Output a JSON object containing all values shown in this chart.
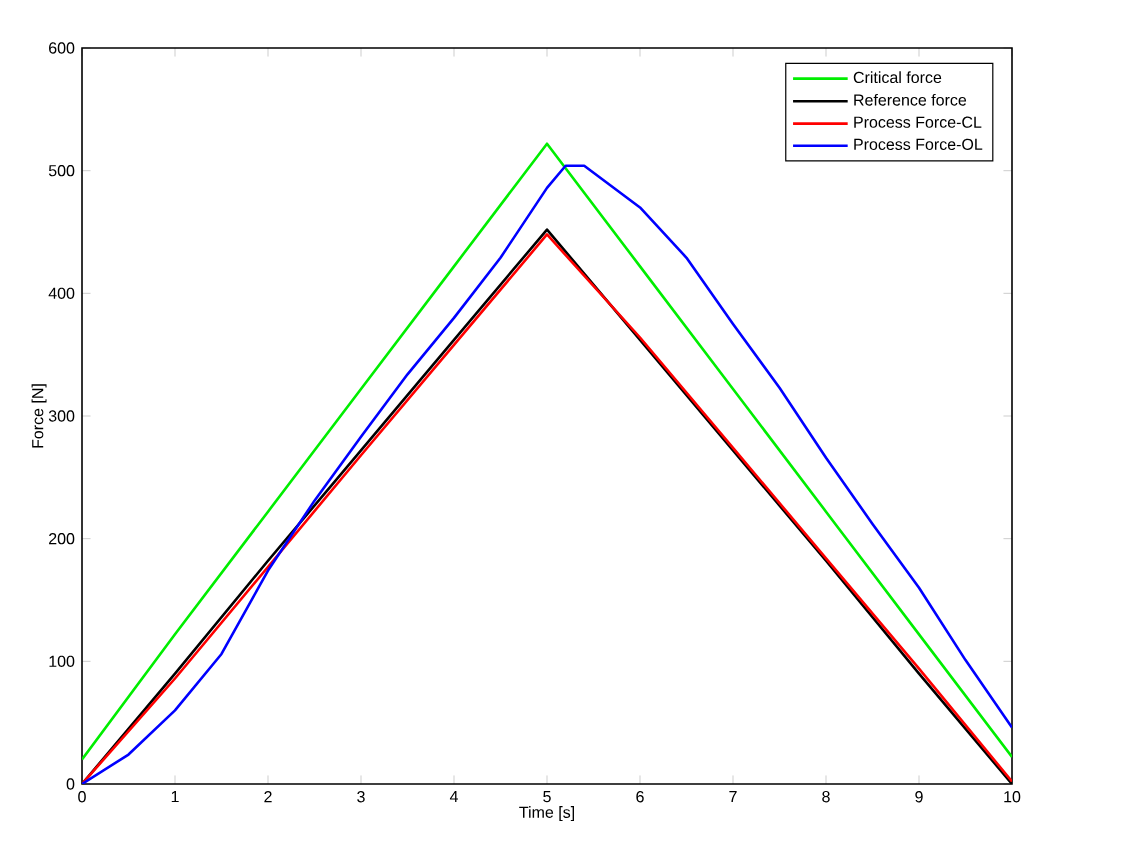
{
  "chart_data": {
    "type": "line",
    "xlabel": "Time [s]",
    "ylabel": "Force [N]",
    "xlim": [
      0,
      10
    ],
    "ylim": [
      0,
      600
    ],
    "xticks": [
      0,
      1,
      2,
      3,
      4,
      5,
      6,
      7,
      8,
      9,
      10
    ],
    "yticks": [
      0,
      100,
      200,
      300,
      400,
      500,
      600
    ],
    "legend": "top right",
    "grid": false,
    "marker": "none",
    "line_style": "solid",
    "series": [
      {
        "name": "Critical force",
        "color": "#00ee00",
        "x": [
          0,
          1,
          2,
          3,
          4,
          5,
          6,
          7,
          8,
          9,
          10
        ],
        "values": [
          20,
          122,
          222,
          322,
          422,
          522,
          422,
          322,
          222,
          122,
          22
        ]
      },
      {
        "name": "Reference force",
        "color": "#000000",
        "x": [
          0,
          1,
          2,
          3,
          4,
          5,
          6,
          7,
          8,
          9,
          10
        ],
        "values": [
          0,
          90,
          182,
          272,
          362,
          452,
          362,
          272,
          182,
          90,
          0
        ]
      },
      {
        "name": "Process Force-CL",
        "color": "#ff0000",
        "x": [
          0,
          1,
          2,
          3,
          4,
          5,
          6,
          7,
          8,
          9,
          10
        ],
        "values": [
          0,
          86,
          177,
          268,
          358,
          448,
          364,
          274,
          184,
          94,
          2
        ]
      },
      {
        "name": "Process Force-OL",
        "color": "#0000ff",
        "x": [
          0,
          0.5,
          1,
          1.5,
          2,
          2.5,
          3,
          3.5,
          4,
          4.5,
          5,
          5.2,
          5.4,
          6,
          6.5,
          7,
          7.5,
          8,
          8.5,
          9,
          9.5,
          10
        ],
        "values": [
          0,
          24,
          60,
          106,
          174,
          231,
          283,
          334,
          380,
          429,
          486,
          504,
          504,
          470,
          429,
          375,
          323,
          266,
          212,
          160,
          101,
          46
        ]
      }
    ]
  }
}
